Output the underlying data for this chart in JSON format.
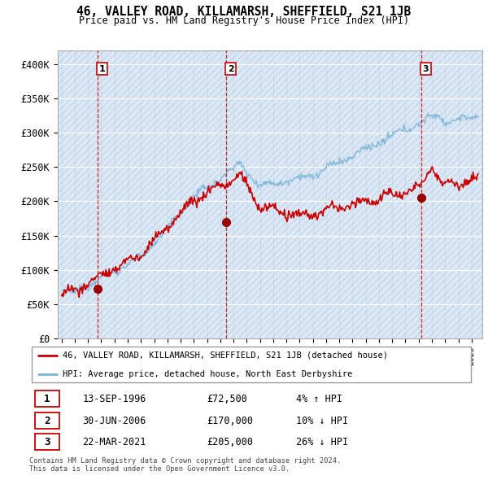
{
  "title": "46, VALLEY ROAD, KILLAMARSH, SHEFFIELD, S21 1JB",
  "subtitle": "Price paid vs. HM Land Registry's House Price Index (HPI)",
  "legend_line1": "46, VALLEY ROAD, KILLAMARSH, SHEFFIELD, S21 1JB (detached house)",
  "legend_line2": "HPI: Average price, detached house, North East Derbyshire",
  "transactions": [
    {
      "num": 1,
      "date": "13-SEP-1996",
      "price": 72500,
      "pct": "4%",
      "dir": "↑"
    },
    {
      "num": 2,
      "date": "30-JUN-2006",
      "price": 170000,
      "pct": "10%",
      "dir": "↓"
    },
    {
      "num": 3,
      "date": "22-MAR-2021",
      "price": 205000,
      "pct": "26%",
      "dir": "↓"
    }
  ],
  "footer": "Contains HM Land Registry data © Crown copyright and database right 2024.\nThis data is licensed under the Open Government Licence v3.0.",
  "transaction_line_color": "#cc0000",
  "hpi_line_color": "#7ab4d8",
  "bg_color": "#dce9f5",
  "ylim": [
    0,
    420000
  ],
  "yticks": [
    0,
    50000,
    100000,
    150000,
    200000,
    250000,
    300000,
    350000,
    400000
  ],
  "ytick_labels": [
    "£0",
    "£50K",
    "£100K",
    "£150K",
    "£200K",
    "£250K",
    "£300K",
    "£350K",
    "£400K"
  ],
  "xlim_start": 1993.7,
  "xlim_end": 2025.8
}
